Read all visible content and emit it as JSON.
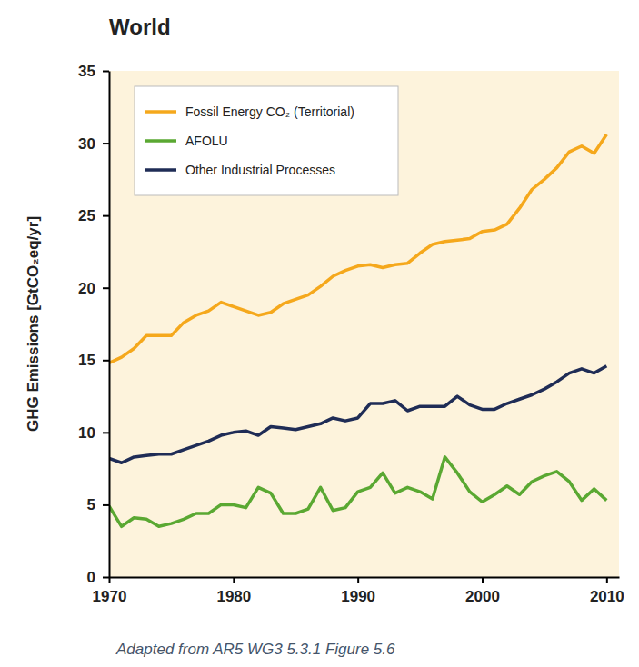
{
  "chart_data": {
    "type": "line",
    "title": "World",
    "y_label": "GHG Emissions [GtCO₂eq/yr]",
    "annotations": [
      "Adapted from AR5 WG3 5.3.1 Figure 5.6"
    ],
    "x": [
      1970,
      1971,
      1972,
      1973,
      1974,
      1975,
      1976,
      1977,
      1978,
      1979,
      1980,
      1981,
      1982,
      1983,
      1984,
      1985,
      1986,
      1987,
      1988,
      1989,
      1990,
      1991,
      1992,
      1993,
      1994,
      1995,
      1996,
      1997,
      1998,
      1999,
      2000,
      2001,
      2002,
      2003,
      2004,
      2005,
      2006,
      2007,
      2008,
      2009,
      2010
    ],
    "series": [
      {
        "name": "Fossil Energy CO₂ (Territorial)",
        "color": "#f5a81c",
        "values": [
          14.8,
          15.2,
          15.8,
          16.7,
          16.7,
          16.7,
          17.6,
          18.1,
          18.4,
          19.0,
          18.7,
          18.4,
          18.1,
          18.3,
          18.9,
          19.2,
          19.5,
          20.1,
          20.8,
          21.2,
          21.5,
          21.6,
          21.4,
          21.6,
          21.7,
          22.4,
          23.0,
          23.2,
          23.3,
          23.4,
          23.9,
          24.0,
          24.4,
          25.5,
          26.8,
          27.5,
          28.3,
          29.4,
          29.8,
          29.3,
          30.6
        ]
      },
      {
        "name": "AFOLU",
        "color": "#5aa832",
        "values": [
          4.9,
          3.5,
          4.1,
          4.0,
          3.5,
          3.7,
          4.0,
          4.4,
          4.4,
          5.0,
          5.0,
          4.8,
          6.2,
          5.8,
          4.4,
          4.4,
          4.7,
          6.2,
          4.6,
          4.8,
          5.9,
          6.2,
          7.2,
          5.8,
          6.2,
          5.9,
          5.4,
          8.3,
          7.2,
          5.9,
          5.2,
          5.7,
          6.3,
          5.7,
          6.6,
          7.0,
          7.3,
          6.6,
          5.3,
          6.1,
          5.3
        ]
      },
      {
        "name": "Other Industrial Processes",
        "color": "#1f2c56",
        "values": [
          8.2,
          7.9,
          8.3,
          8.4,
          8.5,
          8.5,
          8.8,
          9.1,
          9.4,
          9.8,
          10.0,
          10.1,
          9.8,
          10.4,
          10.3,
          10.2,
          10.4,
          10.6,
          11.0,
          10.8,
          11.0,
          12.0,
          12.0,
          12.2,
          11.5,
          11.8,
          11.8,
          11.8,
          12.5,
          11.9,
          11.6,
          11.6,
          12.0,
          12.3,
          12.6,
          13.0,
          13.5,
          14.1,
          14.4,
          14.1,
          14.6
        ]
      }
    ],
    "xlim": [
      1970,
      2011
    ],
    "xticks": [
      1970,
      1980,
      1990,
      2000,
      2010
    ],
    "ylim": [
      0,
      35
    ],
    "yticks": [
      0,
      5,
      10,
      15,
      20,
      25,
      30,
      35
    ],
    "grid": false,
    "legend": "upper left"
  }
}
